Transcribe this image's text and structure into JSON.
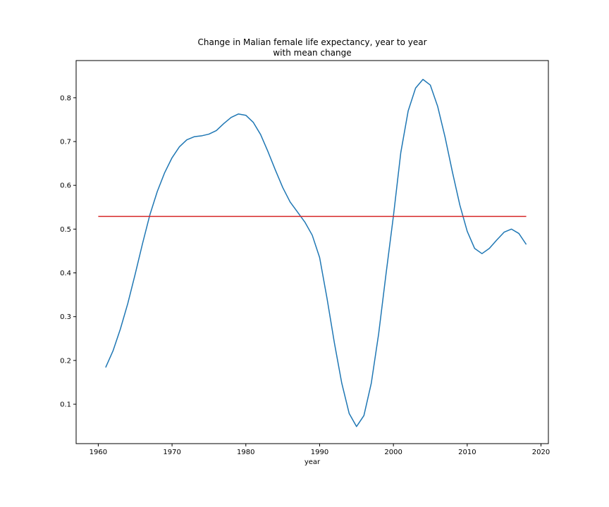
{
  "chart_data": {
    "type": "line",
    "title": "Change in Malian female life expectancy, year to year",
    "subtitle": "with mean change",
    "xlabel": "year",
    "ylabel": "",
    "xlim": [
      1957,
      2021
    ],
    "ylim": [
      0.01,
      0.885
    ],
    "xticks": [
      1960,
      1970,
      1980,
      1990,
      2000,
      2010,
      2020
    ],
    "yticks": [
      0.1,
      0.2,
      0.3,
      0.4,
      0.5,
      0.6,
      0.7,
      0.8
    ],
    "grid": false,
    "colors": {
      "series": "#1f77b4",
      "mean": "#d62728"
    },
    "series": [
      {
        "x": [
          1961,
          1962,
          1963,
          1964,
          1965,
          1966,
          1967,
          1968,
          1969,
          1970,
          1971,
          1972,
          1973,
          1974,
          1975,
          1976,
          1977,
          1978,
          1979,
          1980,
          1981,
          1982,
          1983,
          1984,
          1985,
          1986,
          1987,
          1988,
          1989,
          1990,
          1991,
          1992,
          1993,
          1994,
          1995,
          1996,
          1997,
          1998,
          1999,
          2000,
          2001,
          2002,
          2003,
          2004,
          2005,
          2006,
          2007,
          2008,
          2009,
          2010,
          2011,
          2012,
          2013,
          2014,
          2015,
          2016,
          2017,
          2018
        ],
        "values": [
          0.184,
          0.222,
          0.272,
          0.33,
          0.397,
          0.467,
          0.533,
          0.586,
          0.629,
          0.663,
          0.688,
          0.704,
          0.711,
          0.713,
          0.717,
          0.725,
          0.741,
          0.755,
          0.763,
          0.76,
          0.744,
          0.716,
          0.677,
          0.635,
          0.595,
          0.562,
          0.539,
          0.516,
          0.486,
          0.435,
          0.342,
          0.24,
          0.148,
          0.079,
          0.049,
          0.074,
          0.148,
          0.261,
          0.398,
          0.53,
          0.675,
          0.77,
          0.822,
          0.842,
          0.829,
          0.78,
          0.71,
          0.63,
          0.555,
          0.495,
          0.456,
          0.444,
          0.456,
          0.475,
          0.493,
          0.5,
          0.49,
          0.465
        ]
      },
      {
        "x": [
          1960,
          2018
        ],
        "values": [
          0.529,
          0.529
        ]
      }
    ]
  }
}
